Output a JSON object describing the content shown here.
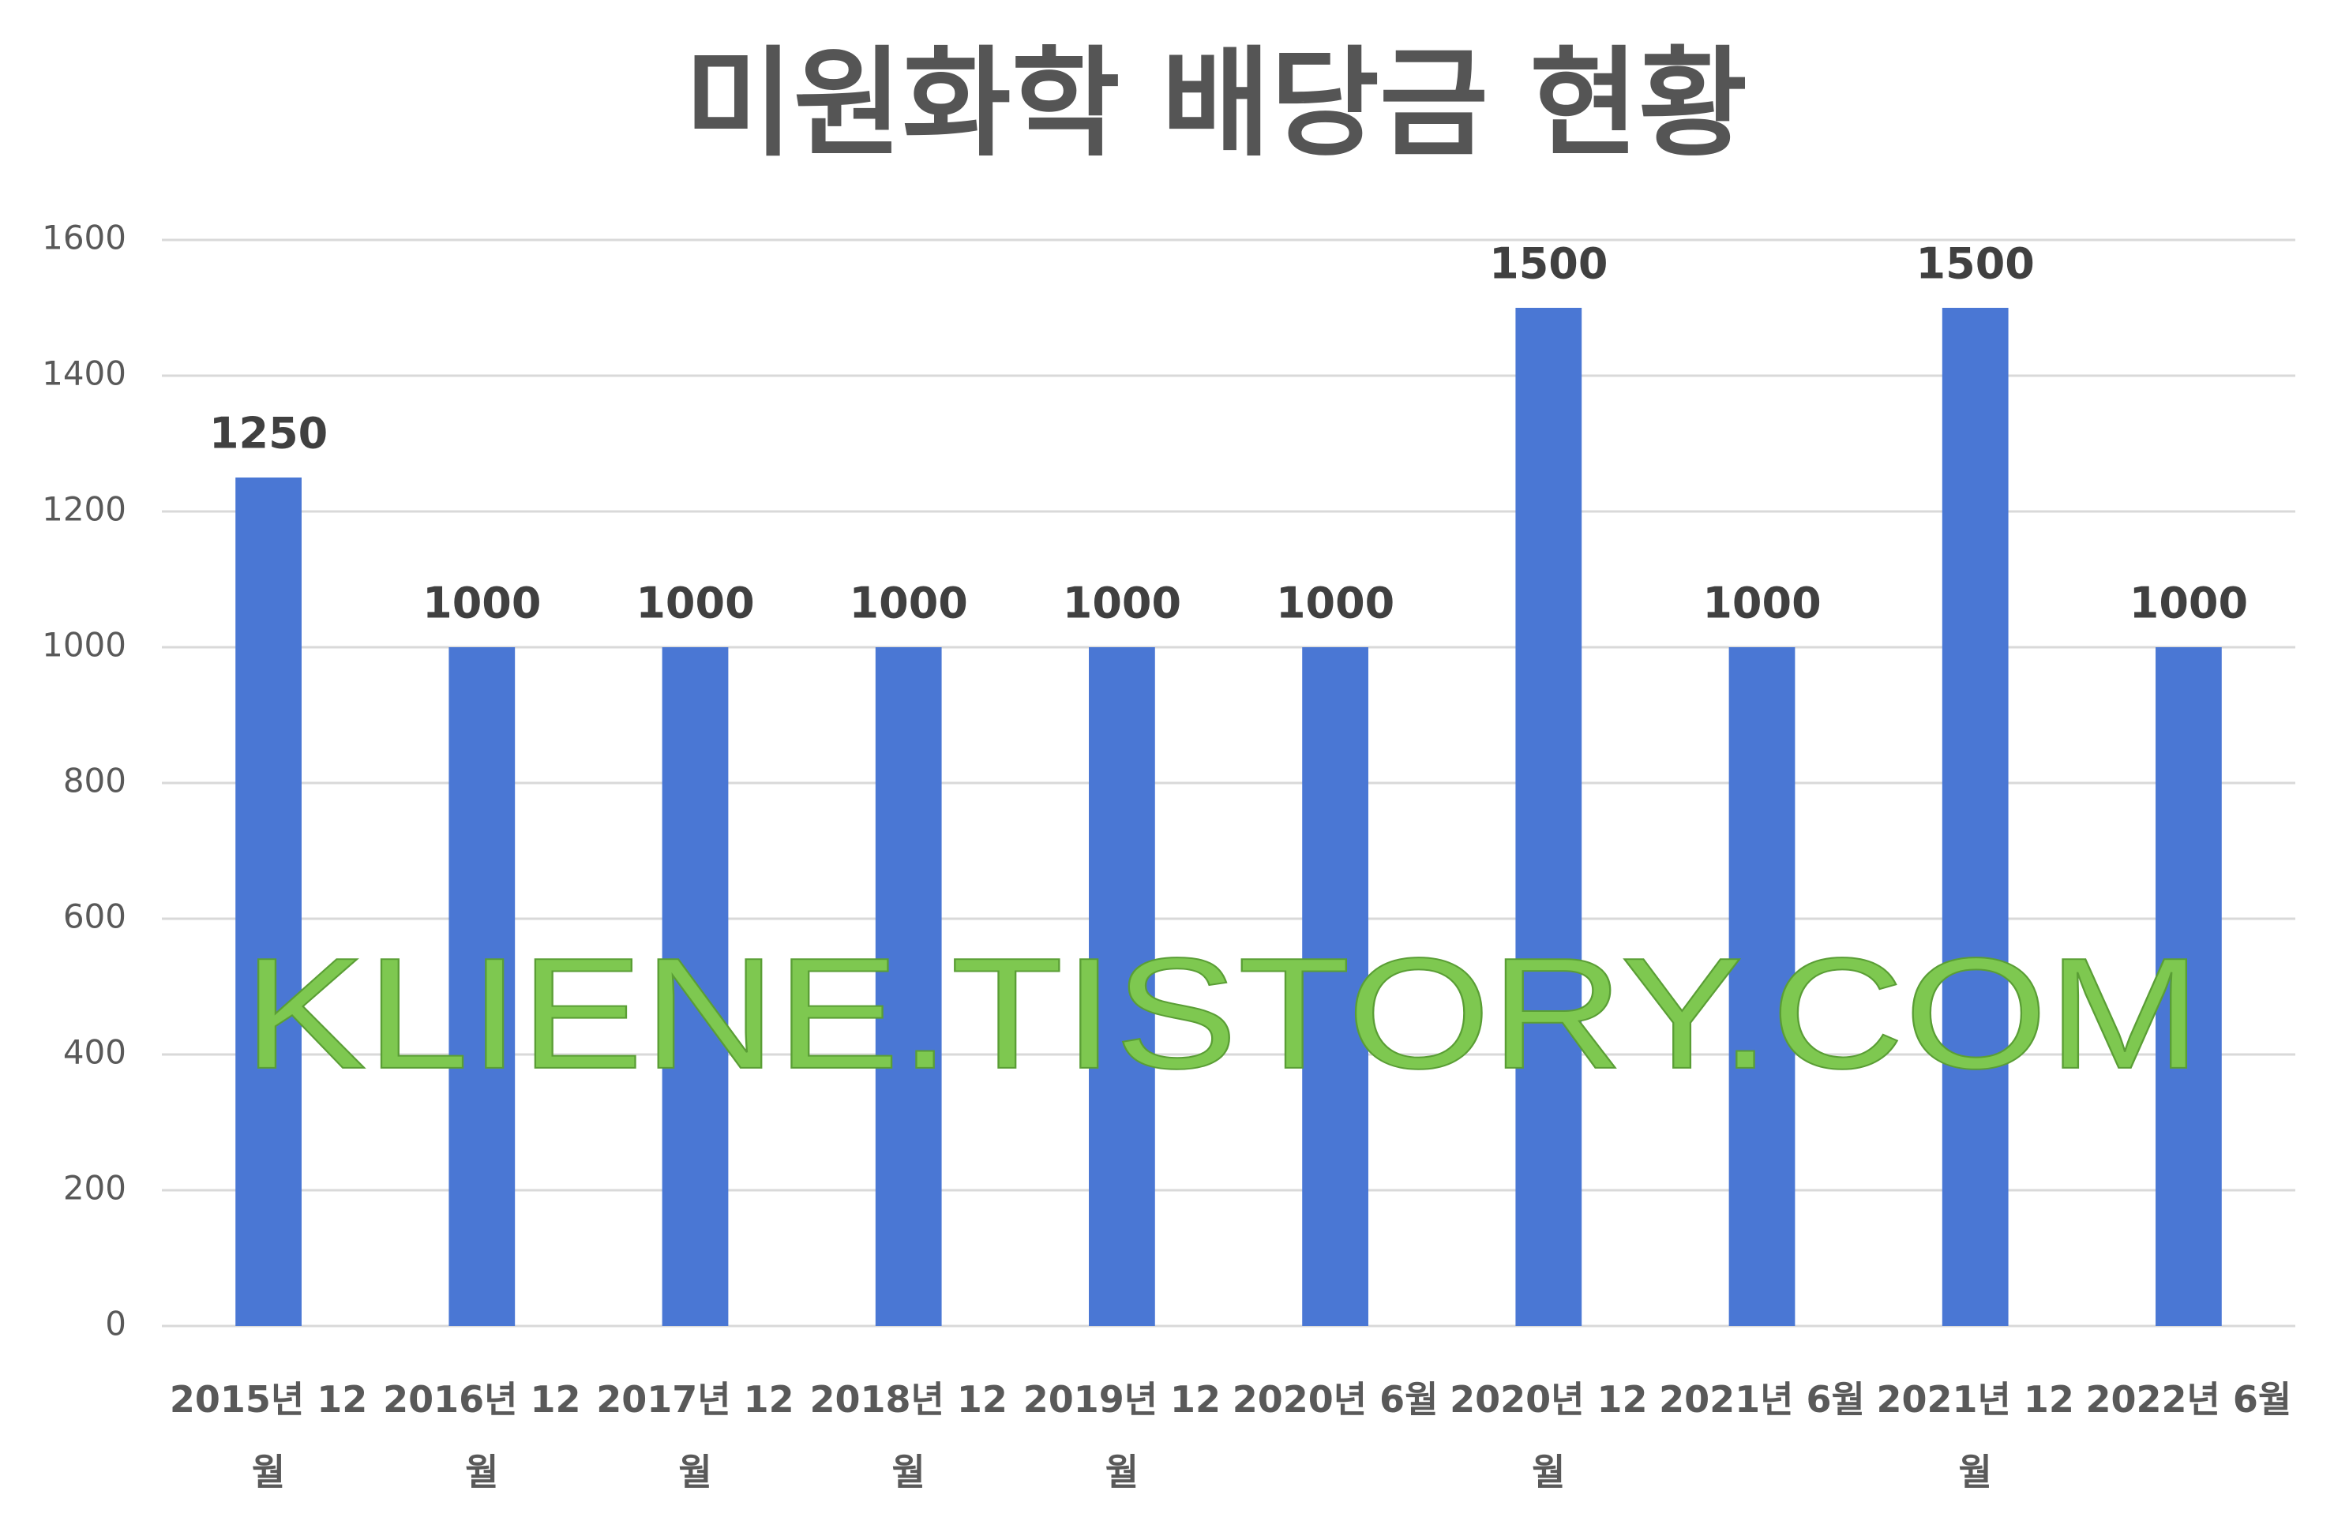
{
  "chart_data": {
    "type": "bar",
    "title": "미원화학 배당금 현황",
    "categories": [
      "2015년 12월",
      "2016년 12월",
      "2017년 12월",
      "2018년 12월",
      "2019년 12월",
      "2020년 6월",
      "2020년 12월",
      "2021년 6월",
      "2021년 12월",
      "2022년 6월"
    ],
    "values": [
      1250,
      1000,
      1000,
      1000,
      1000,
      1000,
      1500,
      1000,
      1500,
      1000
    ],
    "color": "#4a77d4",
    "ylim": [
      0,
      1600
    ],
    "yticks": [
      0,
      200,
      400,
      600,
      800,
      1000,
      1200,
      1400,
      1600
    ],
    "grid": true,
    "annotation": "KLIENE.TISTORY.COM"
  }
}
